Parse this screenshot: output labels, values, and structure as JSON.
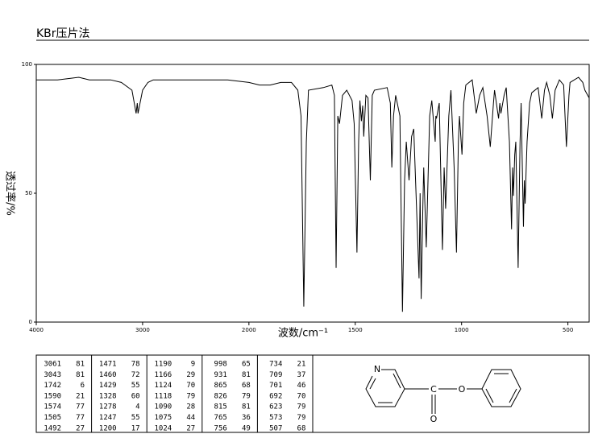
{
  "chart_data": {
    "type": "line",
    "title": "KBr压片法",
    "x_label": "波数/cm⁻¹",
    "y_label": "透过率/%",
    "xlim": [
      4000,
      400
    ],
    "ylim": [
      0,
      100
    ],
    "xticks": [
      4000,
      3000,
      2000,
      1500,
      1000,
      500
    ],
    "yticks": [
      0,
      50,
      100
    ],
    "x_scale_change": {
      "at": 2000,
      "factor": 2
    },
    "color": "#000000",
    "x": [
      4000,
      3800,
      3600,
      3500,
      3450,
      3300,
      3200,
      3100,
      3061,
      3050,
      3043,
      3000,
      2950,
      2900,
      2700,
      2400,
      2200,
      2000,
      1950,
      1900,
      1850,
      1800,
      1770,
      1755,
      1742,
      1730,
      1720,
      1650,
      1610,
      1598,
      1590,
      1582,
      1574,
      1560,
      1540,
      1515,
      1505,
      1492,
      1484,
      1478,
      1471,
      1465,
      1460,
      1450,
      1440,
      1429,
      1420,
      1410,
      1350,
      1335,
      1328,
      1320,
      1310,
      1290,
      1278,
      1268,
      1260,
      1247,
      1235,
      1225,
      1200,
      1195,
      1190,
      1182,
      1178,
      1166,
      1150,
      1140,
      1124,
      1121,
      1118,
      1105,
      1090,
      1082,
      1075,
      1060,
      1050,
      1035,
      1024,
      1015,
      1010,
      998,
      990,
      980,
      950,
      931,
      915,
      900,
      880,
      865,
      850,
      845,
      826,
      820,
      815,
      800,
      790,
      775,
      765,
      760,
      756,
      750,
      745,
      734,
      725,
      720,
      709,
      705,
      701,
      696,
      692,
      680,
      670,
      640,
      623,
      610,
      600,
      585,
      573,
      560,
      540,
      520,
      507,
      495,
      490,
      470,
      450,
      430,
      420,
      400
    ],
    "values": [
      94,
      94,
      95,
      94,
      94,
      94,
      93,
      90,
      81,
      85,
      81,
      90,
      93,
      94,
      94,
      94,
      94,
      93,
      92,
      92,
      93,
      93,
      90,
      80,
      6,
      70,
      90,
      91,
      92,
      88,
      21,
      80,
      77,
      88,
      90,
      86,
      77,
      27,
      70,
      86,
      78,
      84,
      72,
      88,
      87,
      55,
      88,
      90,
      91,
      85,
      60,
      80,
      88,
      80,
      4,
      55,
      70,
      55,
      72,
      75,
      17,
      50,
      9,
      45,
      60,
      29,
      80,
      86,
      70,
      80,
      79,
      85,
      28,
      60,
      44,
      80,
      90,
      60,
      27,
      70,
      80,
      65,
      85,
      92,
      94,
      81,
      88,
      91,
      80,
      68,
      85,
      90,
      79,
      85,
      81,
      88,
      91,
      70,
      36,
      60,
      49,
      65,
      70,
      21,
      70,
      85,
      37,
      55,
      46,
      60,
      70,
      85,
      89,
      91,
      79,
      90,
      93,
      88,
      79,
      90,
      94,
      92,
      68,
      88,
      93,
      94,
      95,
      93,
      90,
      87
    ]
  },
  "peak_table": {
    "columns": [
      [
        [
          3061,
          81
        ],
        [
          3043,
          81
        ],
        [
          1742,
          6
        ],
        [
          1590,
          21
        ],
        [
          1574,
          77
        ],
        [
          1505,
          77
        ],
        [
          1492,
          27
        ]
      ],
      [
        [
          1471,
          78
        ],
        [
          1460,
          72
        ],
        [
          1429,
          55
        ],
        [
          1328,
          60
        ],
        [
          1278,
          4
        ],
        [
          1247,
          55
        ],
        [
          1200,
          17
        ]
      ],
      [
        [
          1190,
          9
        ],
        [
          1166,
          29
        ],
        [
          1124,
          70
        ],
        [
          1118,
          79
        ],
        [
          1090,
          28
        ],
        [
          1075,
          44
        ],
        [
          1024,
          27
        ]
      ],
      [
        [
          998,
          65
        ],
        [
          931,
          81
        ],
        [
          865,
          68
        ],
        [
          826,
          79
        ],
        [
          815,
          81
        ],
        [
          765,
          36
        ],
        [
          756,
          49
        ]
      ],
      [
        [
          734,
          21
        ],
        [
          709,
          37
        ],
        [
          701,
          46
        ],
        [
          692,
          70
        ],
        [
          623,
          79
        ],
        [
          573,
          79
        ],
        [
          507,
          68
        ]
      ]
    ]
  },
  "structure": {
    "atoms": [
      "N",
      "C",
      "O",
      "O"
    ]
  }
}
